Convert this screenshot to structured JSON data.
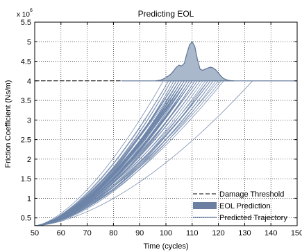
{
  "chart_data": {
    "type": "line",
    "title": "Predicting EOL",
    "xlabel": "Time (cycles)",
    "ylabel": "Friction Coefficient (Ns/m)",
    "y_multiplier_label": "x 10",
    "y_multiplier_exponent": "6",
    "xlim": [
      50,
      150
    ],
    "ylim": [
      0.3,
      5.5
    ],
    "x_ticks": [
      "50",
      "60",
      "70",
      "80",
      "90",
      "100",
      "110",
      "120",
      "130",
      "140",
      "150"
    ],
    "y_ticks": [
      "0.5",
      "1",
      "1.5",
      "2",
      "2.5",
      "3",
      "3.5",
      "4",
      "4.5",
      "5",
      "5.5"
    ],
    "x_tick_values": [
      50,
      60,
      70,
      80,
      90,
      100,
      110,
      120,
      130,
      140,
      150
    ],
    "y_tick_values": [
      0.5,
      1,
      1.5,
      2,
      2.5,
      3,
      3.5,
      4,
      4.5,
      5,
      5.5
    ],
    "grid": true,
    "legend_position": "bottom-right",
    "legend": [
      {
        "label": "Damage Threshold",
        "style": "dashed"
      },
      {
        "label": "EOL Prediction",
        "style": "patch"
      },
      {
        "label": "Predicted Trajectory",
        "style": "line"
      }
    ],
    "damage_threshold": {
      "y": 4.0,
      "x_range": [
        50,
        83
      ]
    },
    "trajectories": {
      "start": [
        50,
        0.3
      ],
      "end_y": 4.0,
      "count": 60,
      "eol_min": 99,
      "eol_max": 133,
      "eol_samples": [
        99,
        101,
        101,
        102,
        102,
        103,
        103,
        104,
        104,
        104,
        104,
        105,
        105,
        105,
        105,
        106,
        106,
        106,
        106,
        106,
        107,
        107,
        107,
        107,
        107,
        107,
        108,
        108,
        108,
        108,
        108,
        109,
        109,
        109,
        109,
        110,
        110,
        110,
        110,
        111,
        111,
        111,
        112,
        112,
        113,
        113,
        114,
        115,
        116,
        116,
        117,
        117,
        117,
        118,
        118,
        119,
        120,
        121,
        122,
        133
      ]
    },
    "eol_distribution": {
      "baseline_y": 4.0,
      "x": [
        96,
        98,
        100,
        102,
        104,
        105,
        106,
        107,
        108,
        109,
        110,
        111,
        112,
        113,
        114,
        115,
        116,
        117,
        118,
        119,
        120,
        121,
        122,
        123,
        124,
        126
      ],
      "y": [
        4.0,
        4.02,
        4.08,
        4.18,
        4.35,
        4.4,
        4.38,
        4.45,
        4.7,
        4.92,
        5.0,
        4.88,
        4.55,
        4.3,
        4.27,
        4.3,
        4.33,
        4.35,
        4.33,
        4.28,
        4.2,
        4.12,
        4.06,
        4.03,
        4.01,
        4.0
      ]
    },
    "colors": {
      "trajectory": "#6d84a8",
      "eol_fill": "#a9b8cb",
      "eol_edge": "#5f7395",
      "legend_patch": "#6b7fa0",
      "threshold": "#000000",
      "grid": "#000000"
    }
  }
}
